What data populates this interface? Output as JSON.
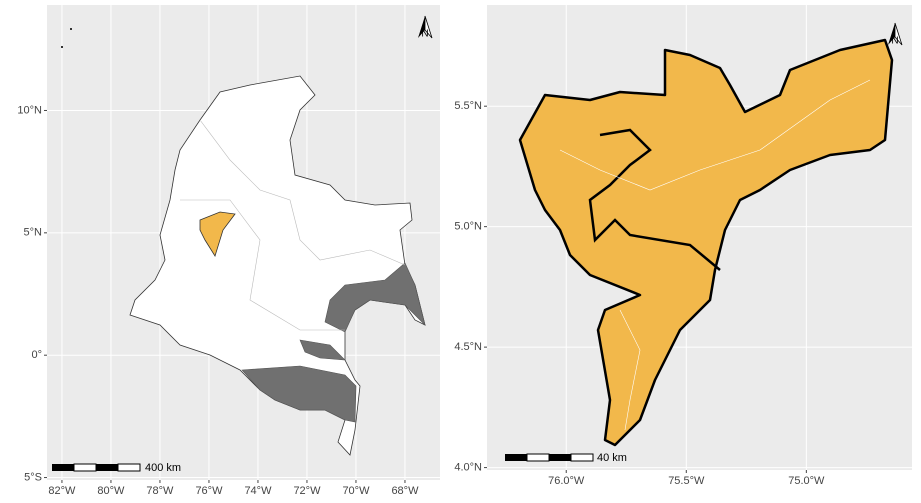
{
  "maps": [
    {
      "xlim": [
        -82.61,
        -66.57
      ],
      "ylim": [
        -5.1,
        14.31
      ],
      "xticks": [
        {
          "value": -82,
          "label": "82°W"
        },
        {
          "value": -80,
          "label": "80°W"
        },
        {
          "value": -78,
          "label": "78°W"
        },
        {
          "value": -76,
          "label": "76°W"
        },
        {
          "value": -74,
          "label": "74°W"
        },
        {
          "value": -72,
          "label": "72°W"
        },
        {
          "value": -70,
          "label": "70°W"
        },
        {
          "value": -68,
          "label": "68°W"
        }
      ],
      "yticks": [
        {
          "value": 10,
          "label": "10°N"
        },
        {
          "value": 5,
          "label": "5°N"
        },
        {
          "value": 0,
          "label": "0°"
        },
        {
          "value": -5,
          "label": "5°S"
        }
      ],
      "scale_label": "400 km",
      "north": "N"
    },
    {
      "xlim": [
        -76.33,
        -74.56
      ],
      "ylim": [
        3.99,
        5.92
      ],
      "xticks": [
        {
          "value": -76.0,
          "label": "76.0°W"
        },
        {
          "value": -75.5,
          "label": "75.5°W"
        },
        {
          "value": -75.0,
          "label": "75.0°W"
        }
      ],
      "yticks": [
        {
          "value": 5.5,
          "label": "5.5°N"
        },
        {
          "value": 5.0,
          "label": "5.0°N"
        },
        {
          "value": 4.5,
          "label": "4.5°N"
        },
        {
          "value": 4.0,
          "label": "4.0°N"
        }
      ],
      "scale_label": "40 km",
      "north": "N"
    }
  ]
}
